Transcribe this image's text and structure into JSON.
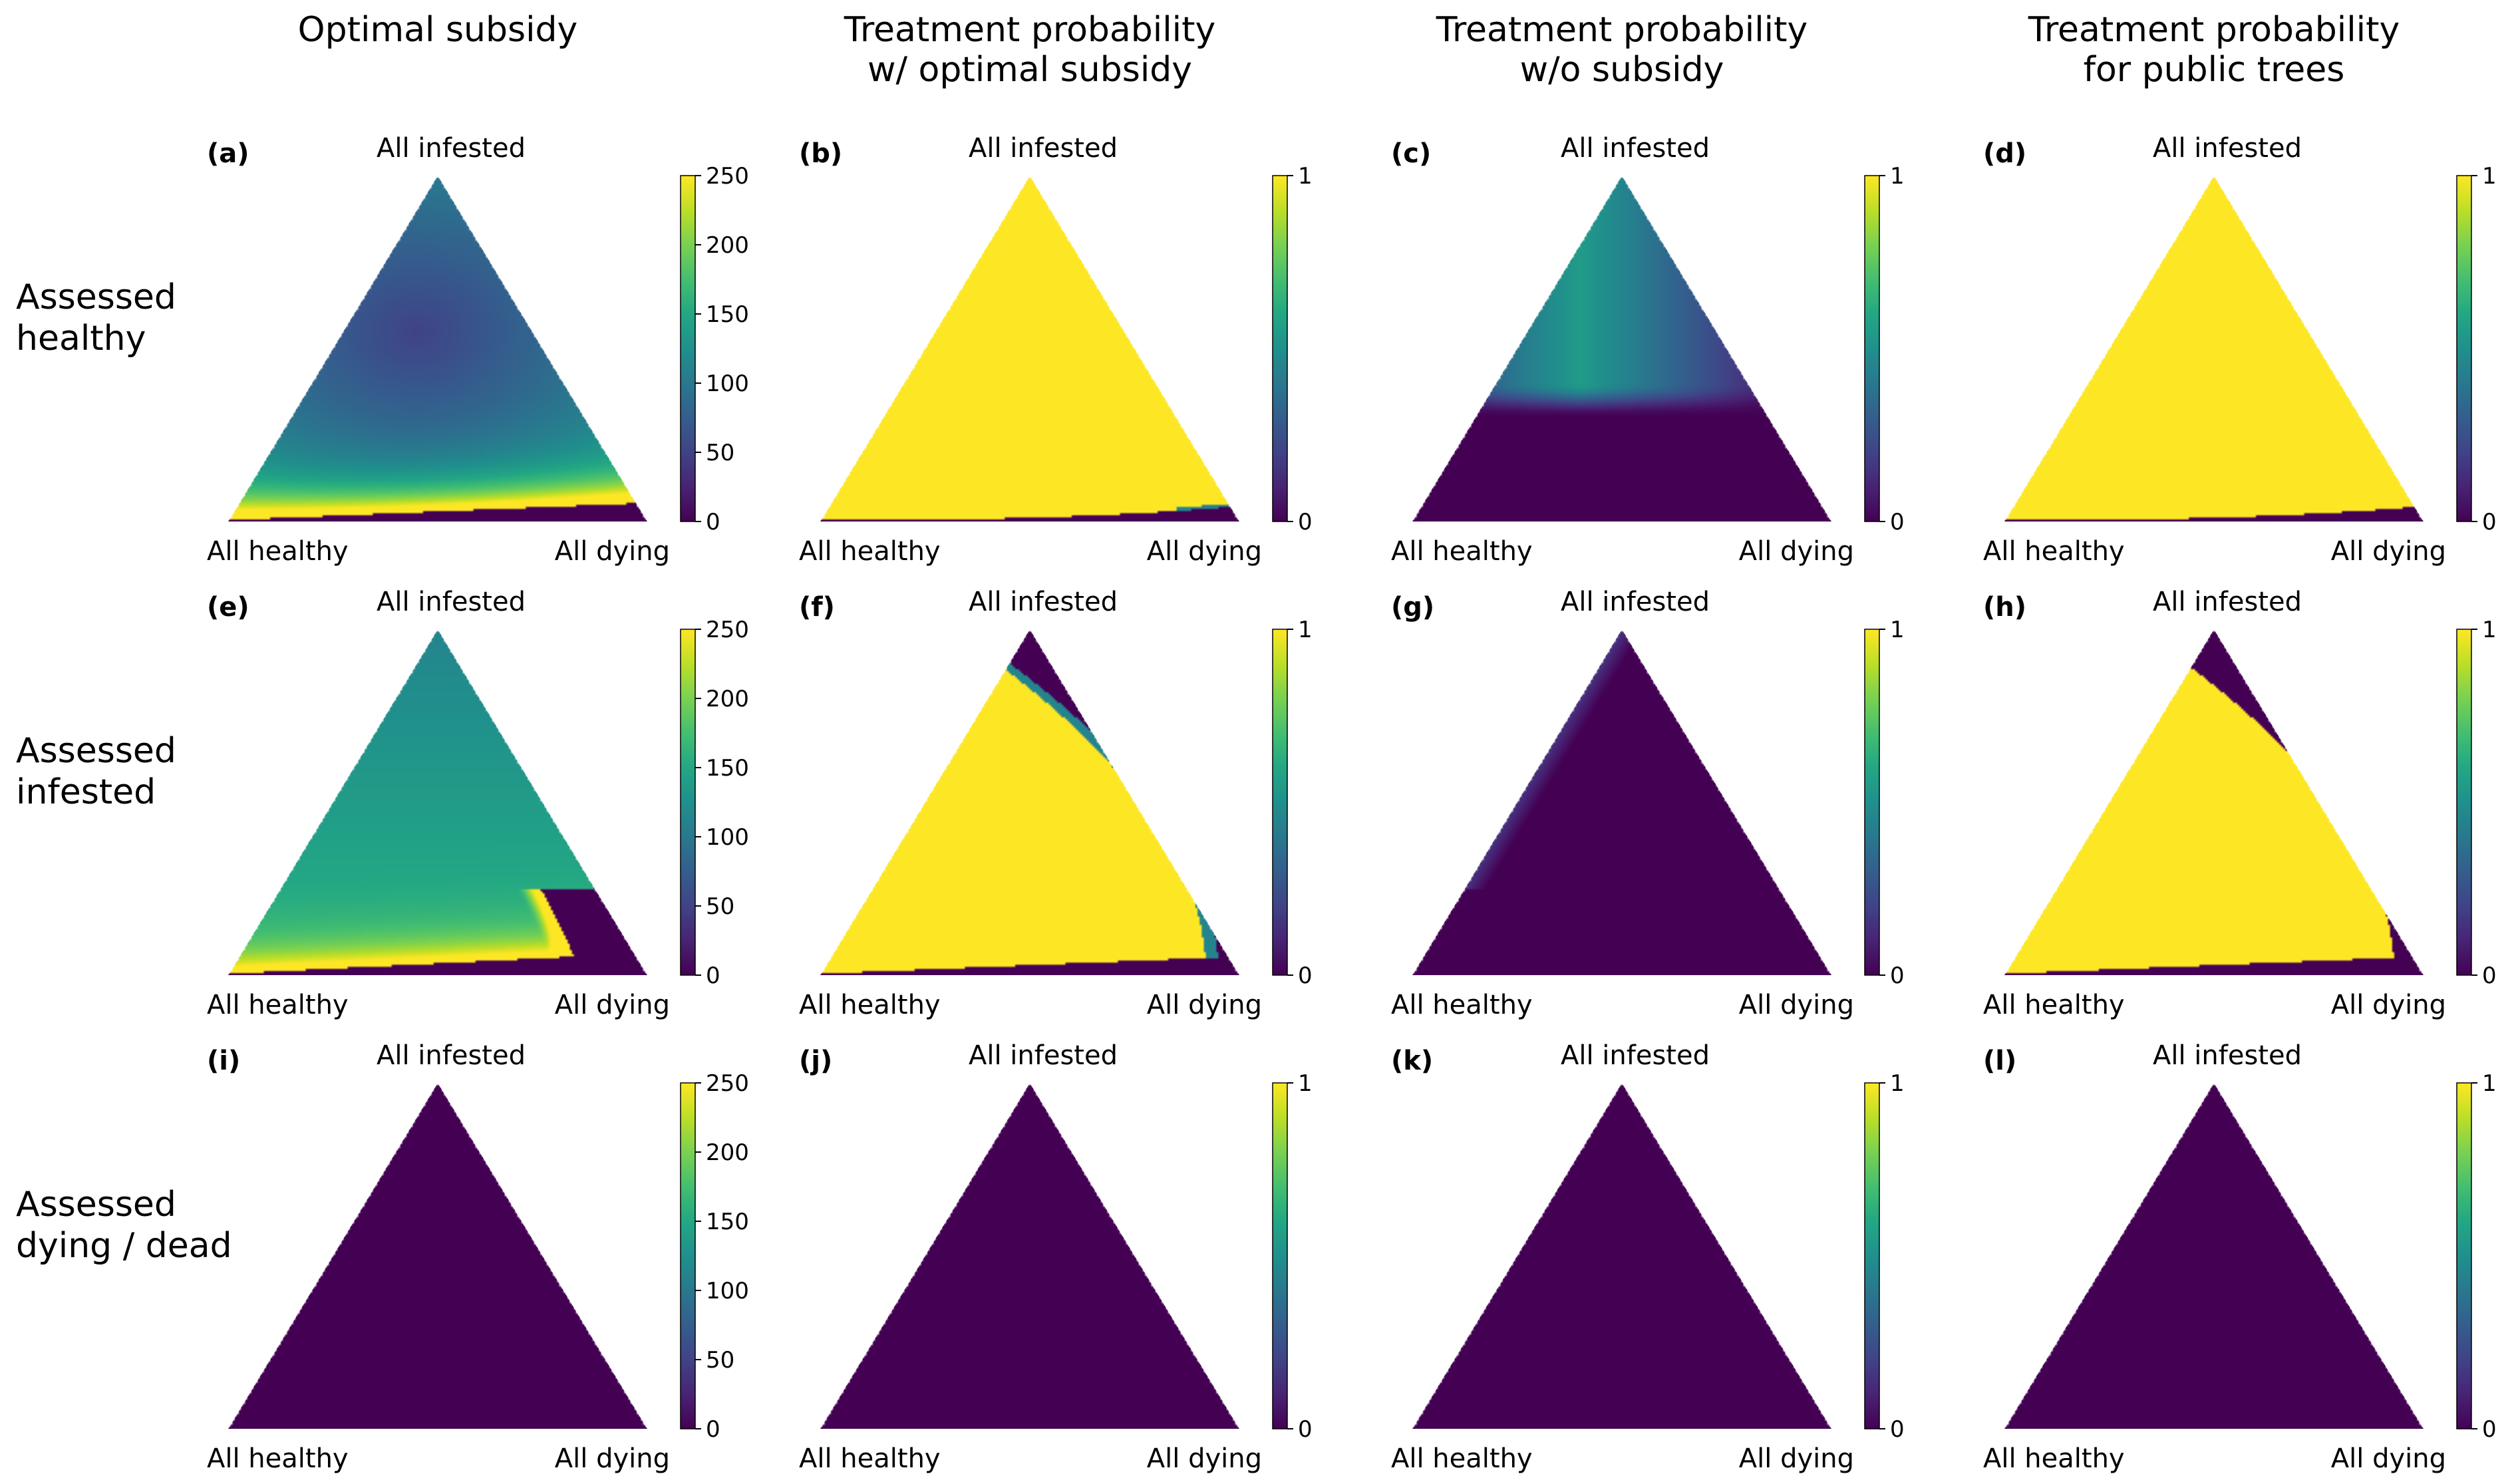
{
  "figure": {
    "column_titles": [
      [
        "Optimal subsidy"
      ],
      [
        "Treatment probability",
        "w/ optimal subsidy"
      ],
      [
        "Treatment probability",
        "w/o subsidy"
      ],
      [
        "Treatment probability",
        "for public trees"
      ]
    ],
    "row_labels": [
      [
        "Assessed",
        "healthy"
      ],
      [
        "Assessed",
        "infested"
      ],
      [
        "Assessed",
        "dying / dead"
      ]
    ],
    "vertex_labels": {
      "top": "All infested",
      "left": "All healthy",
      "right": "All dying"
    }
  },
  "colormap": "viridis",
  "chart_data": [
    {
      "id": "a",
      "panel_label": "(a)",
      "type": "heatmap",
      "quantity": "optimal subsidy",
      "cbar_range": [
        0,
        250
      ],
      "cbar_ticks": [
        "0",
        "50",
        "100",
        "150",
        "200",
        "250"
      ]
    },
    {
      "id": "b",
      "panel_label": "(b)",
      "type": "heatmap",
      "quantity": "treatment probability",
      "cbar_range": [
        0,
        1
      ],
      "cbar_ticks": [
        "0",
        "1"
      ]
    },
    {
      "id": "c",
      "panel_label": "(c)",
      "type": "heatmap",
      "quantity": "treatment probability",
      "cbar_range": [
        0,
        1
      ],
      "cbar_ticks": [
        "0",
        "1"
      ]
    },
    {
      "id": "d",
      "panel_label": "(d)",
      "type": "heatmap",
      "quantity": "treatment probability",
      "cbar_range": [
        0,
        1
      ],
      "cbar_ticks": [
        "0",
        "1"
      ]
    },
    {
      "id": "e",
      "panel_label": "(e)",
      "type": "heatmap",
      "quantity": "optimal subsidy",
      "cbar_range": [
        0,
        250
      ],
      "cbar_ticks": [
        "0",
        "50",
        "100",
        "150",
        "200",
        "250"
      ]
    },
    {
      "id": "f",
      "panel_label": "(f)",
      "type": "heatmap",
      "quantity": "treatment probability",
      "cbar_range": [
        0,
        1
      ],
      "cbar_ticks": [
        "0",
        "1"
      ]
    },
    {
      "id": "g",
      "panel_label": "(g)",
      "type": "heatmap",
      "quantity": "treatment probability",
      "cbar_range": [
        0,
        1
      ],
      "cbar_ticks": [
        "0",
        "1"
      ]
    },
    {
      "id": "h",
      "panel_label": "(h)",
      "type": "heatmap",
      "quantity": "treatment probability",
      "cbar_range": [
        0,
        1
      ],
      "cbar_ticks": [
        "0",
        "1"
      ]
    },
    {
      "id": "i",
      "panel_label": "(i)",
      "type": "heatmap",
      "quantity": "optimal subsidy",
      "cbar_range": [
        0,
        250
      ],
      "cbar_ticks": [
        "0",
        "50",
        "100",
        "150",
        "200",
        "250"
      ]
    },
    {
      "id": "j",
      "panel_label": "(j)",
      "type": "heatmap",
      "quantity": "treatment probability",
      "cbar_range": [
        0,
        1
      ],
      "cbar_ticks": [
        "0",
        "1"
      ]
    },
    {
      "id": "k",
      "panel_label": "(k)",
      "type": "heatmap",
      "quantity": "treatment probability",
      "cbar_range": [
        0,
        1
      ],
      "cbar_ticks": [
        "0",
        "1"
      ]
    },
    {
      "id": "l",
      "panel_label": "(l)",
      "type": "heatmap",
      "quantity": "treatment probability",
      "cbar_range": [
        0,
        1
      ],
      "cbar_ticks": [
        "0",
        "1"
      ]
    }
  ]
}
